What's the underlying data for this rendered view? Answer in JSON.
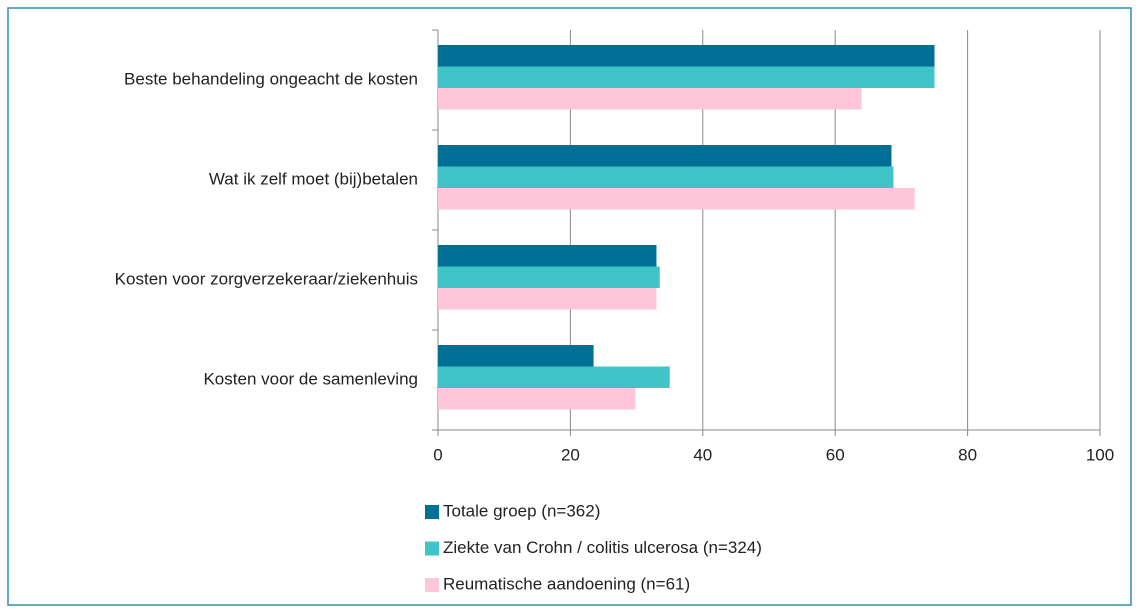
{
  "chart_data": {
    "type": "hbar",
    "categories": [
      "Beste behandeling ongeacht de kosten",
      "Wat ik zelf moet (bij)betalen",
      "Kosten voor zorgverzekeraar/ziekenhuis",
      "Kosten voor de samenleving"
    ],
    "series": [
      {
        "name": "Totale groep (n=362)",
        "color": "#006f96",
        "values": [
          75,
          68.5,
          33,
          23.5
        ]
      },
      {
        "name": "Ziekte van Crohn / colitis ulcerosa (n=324)",
        "color": "#40c4c8",
        "values": [
          75,
          68.8,
          33.5,
          35
        ]
      },
      {
        "name": "Reumatische aandoening (n=61)",
        "color": "#ffc5d8",
        "values": [
          64,
          72,
          33,
          29.8
        ]
      }
    ],
    "xlim": [
      0,
      100
    ],
    "xticks": [
      0,
      20,
      40,
      60,
      80,
      100
    ],
    "grid": true,
    "legend": "bottom"
  }
}
